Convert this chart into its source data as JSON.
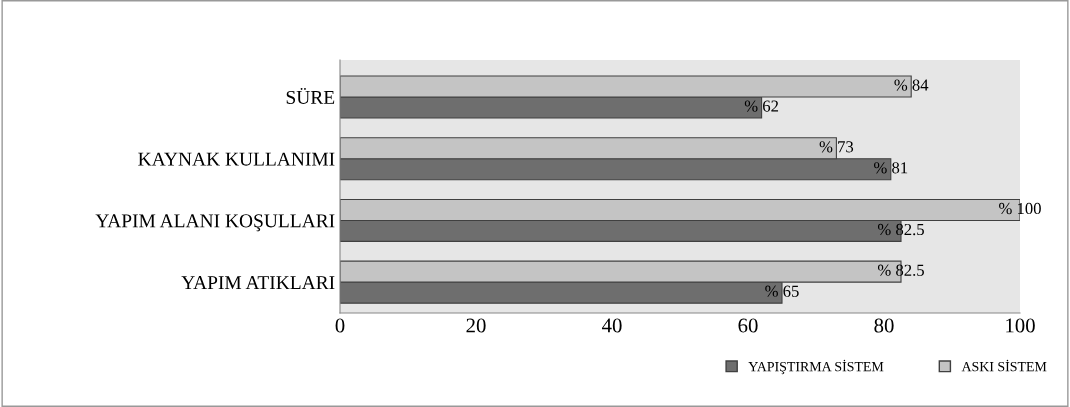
{
  "chart_data": {
    "type": "bar",
    "orientation": "horizontal",
    "categories": [
      "SÜRE",
      "KAYNAK KULLANIMI",
      "YAPIM ALANI KOŞULLARI",
      "YAPIM ATIKLARI"
    ],
    "series": [
      {
        "name": "YAPIŞTIRMA SİSTEM",
        "color": "#6e6e6e",
        "values": [
          62,
          81,
          82.5,
          65
        ],
        "value_labels": [
          "% 62",
          "% 81",
          "% 82.5",
          "% 65"
        ]
      },
      {
        "name": "ASKI SİSTEM",
        "color": "#c4c4c4",
        "values": [
          84,
          73,
          100,
          82.5
        ],
        "value_labels": [
          "% 84",
          "% 73",
          "% 100",
          "% 82.5"
        ]
      }
    ],
    "xlim": [
      0,
      100
    ],
    "xticks": [
      0,
      20,
      40,
      60,
      80,
      100
    ],
    "grid": false,
    "legend": "bottom right"
  }
}
